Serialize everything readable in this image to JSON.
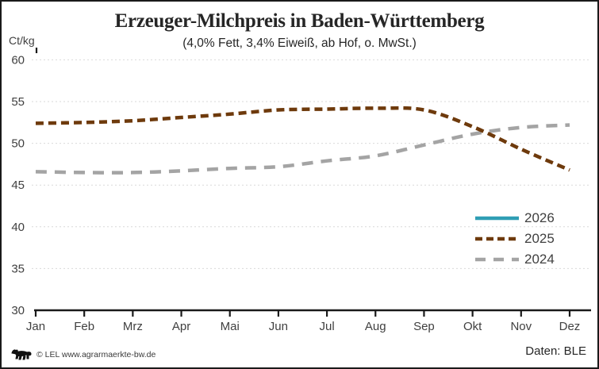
{
  "title": "Erzeuger-Milchpreis in Baden-Württemberg",
  "subtitle": "(4,0% Fett, 3,4% Eiweiß, ab Hof, o. MwSt.)",
  "y_axis_unit": "Ct/kg",
  "footer": {
    "copyright": "© LEL www.agrarmaerkte-bw.de",
    "source": "Daten: BLE"
  },
  "chart_data": {
    "type": "line",
    "title": "Erzeuger-Milchpreis in Baden-Württemberg",
    "subtitle": "(4,0% Fett, 3,4% Eiweiß, ab Hof, o. MwSt.)",
    "ylabel": "Ct/kg",
    "xlabel": "",
    "ylim": [
      30,
      60
    ],
    "y_ticks": [
      30,
      35,
      40,
      45,
      50,
      55,
      60
    ],
    "grid": "horizontal-dotted",
    "legend_position": "inside-right",
    "categories": [
      "Jan",
      "Feb",
      "Mrz",
      "Apr",
      "Mai",
      "Jun",
      "Jul",
      "Aug",
      "Sep",
      "Okt",
      "Nov",
      "Dez"
    ],
    "series": [
      {
        "name": "2026",
        "color": "#2f9eb4",
        "dash": "solid",
        "values": []
      },
      {
        "name": "2025",
        "color": "#6e3a0c",
        "dash": "short-dash",
        "values": [
          52.4,
          52.5,
          52.7,
          53.1,
          53.5,
          54.0,
          54.1,
          54.2,
          54.0,
          52.0,
          49.3,
          46.8
        ]
      },
      {
        "name": "2024",
        "color": "#a4a4a4",
        "dash": "long-dash",
        "values": [
          46.6,
          46.5,
          46.5,
          46.7,
          47.0,
          47.2,
          47.9,
          48.5,
          49.8,
          51.1,
          51.9,
          52.2
        ]
      }
    ],
    "colors": {
      "grid": "#d9d9d9",
      "axis": "#1a1a1a",
      "tick_text": "#404040"
    }
  }
}
